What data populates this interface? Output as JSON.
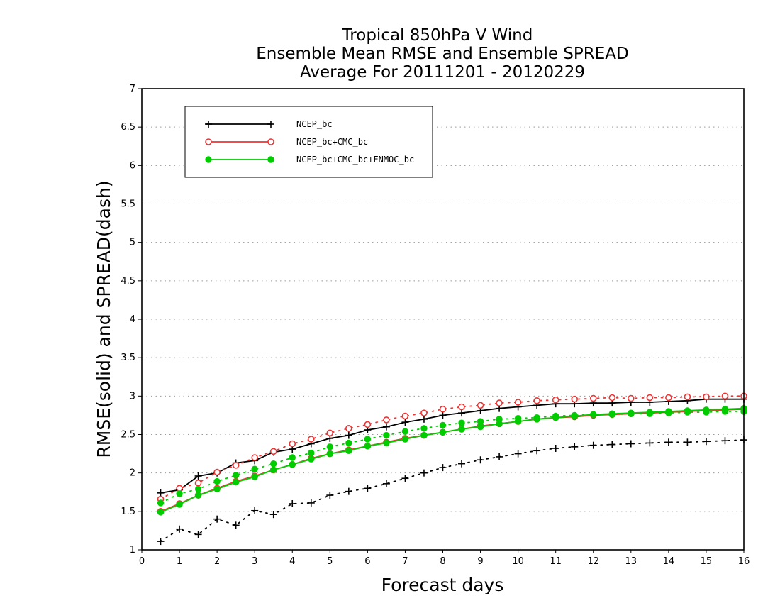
{
  "chart_data": {
    "type": "line",
    "title": [
      "Tropical 850hPa V Wind",
      "Ensemble Mean RMSE and Ensemble SPREAD",
      "Average For 20111201 - 20120229"
    ],
    "xlabel": "Forecast days",
    "ylabel": "RMSE(solid) and SPREAD(dash)",
    "xlim": [
      0,
      16
    ],
    "ylim": [
      1,
      7
    ],
    "xticks": [
      "0",
      "1",
      "2",
      "3",
      "4",
      "5",
      "6",
      "7",
      "8",
      "9",
      "10",
      "11",
      "12",
      "13",
      "14",
      "15",
      "16"
    ],
    "yticks": [
      "1",
      "1.5",
      "2",
      "2.5",
      "3",
      "3.5",
      "4",
      "4.5",
      "5",
      "5.5",
      "6",
      "6.5",
      "7"
    ],
    "grid": "horizontal dotted",
    "legend_position": "top-left",
    "x": [
      0.5,
      1,
      1.5,
      2,
      2.5,
      3,
      3.5,
      4,
      4.5,
      5,
      5.5,
      6,
      6.5,
      7,
      7.5,
      8,
      8.5,
      9,
      9.5,
      10,
      10.5,
      11,
      11.5,
      12,
      12.5,
      13,
      13.5,
      14,
      14.5,
      15,
      15.5,
      16
    ],
    "series": [
      {
        "name": "NCEP_bc",
        "color": "#000000",
        "marker": "plus",
        "rmse": [
          1.74,
          1.78,
          1.96,
          2.0,
          2.13,
          2.16,
          2.27,
          2.31,
          2.38,
          2.45,
          2.49,
          2.56,
          2.6,
          2.66,
          2.7,
          2.75,
          2.78,
          2.81,
          2.84,
          2.86,
          2.88,
          2.9,
          2.9,
          2.91,
          2.91,
          2.92,
          2.92,
          2.93,
          2.94,
          2.96,
          2.96,
          2.96
        ],
        "spread": [
          1.11,
          1.27,
          1.2,
          1.4,
          1.32,
          1.51,
          1.46,
          1.6,
          1.61,
          1.71,
          1.76,
          1.8,
          1.86,
          1.93,
          2.0,
          2.07,
          2.12,
          2.17,
          2.21,
          2.25,
          2.29,
          2.32,
          2.34,
          2.36,
          2.37,
          2.38,
          2.39,
          2.4,
          2.4,
          2.41,
          2.42,
          2.43
        ]
      },
      {
        "name": "NCEP_bc+CMC_bc",
        "color": "#ee3333",
        "marker": "open-circle",
        "rmse": [
          1.5,
          1.6,
          1.71,
          1.8,
          1.89,
          1.96,
          2.04,
          2.11,
          2.19,
          2.25,
          2.3,
          2.35,
          2.4,
          2.45,
          2.49,
          2.53,
          2.57,
          2.61,
          2.64,
          2.67,
          2.7,
          2.72,
          2.73,
          2.75,
          2.76,
          2.77,
          2.78,
          2.79,
          2.8,
          2.81,
          2.82,
          2.83
        ],
        "spread": [
          1.66,
          1.8,
          1.87,
          2.01,
          2.1,
          2.2,
          2.28,
          2.38,
          2.44,
          2.52,
          2.58,
          2.63,
          2.69,
          2.74,
          2.78,
          2.83,
          2.86,
          2.88,
          2.91,
          2.92,
          2.94,
          2.95,
          2.96,
          2.97,
          2.98,
          2.97,
          2.98,
          2.98,
          2.99,
          2.99,
          3.0,
          3.0
        ]
      },
      {
        "name": "NCEP_bc+CMC_bc+FNMOC_bc",
        "color": "#00cc00",
        "marker": "filled-circle",
        "rmse": [
          1.49,
          1.59,
          1.71,
          1.79,
          1.88,
          1.95,
          2.04,
          2.11,
          2.18,
          2.25,
          2.29,
          2.35,
          2.39,
          2.44,
          2.49,
          2.53,
          2.57,
          2.6,
          2.64,
          2.67,
          2.7,
          2.72,
          2.74,
          2.76,
          2.77,
          2.78,
          2.79,
          2.8,
          2.81,
          2.82,
          2.83,
          2.84
        ],
        "spread": [
          1.61,
          1.73,
          1.79,
          1.89,
          1.97,
          2.05,
          2.12,
          2.2,
          2.26,
          2.34,
          2.39,
          2.44,
          2.49,
          2.54,
          2.58,
          2.62,
          2.65,
          2.67,
          2.7,
          2.71,
          2.72,
          2.74,
          2.75,
          2.76,
          2.76,
          2.77,
          2.77,
          2.78,
          2.79,
          2.79,
          2.8,
          2.8
        ]
      }
    ]
  }
}
